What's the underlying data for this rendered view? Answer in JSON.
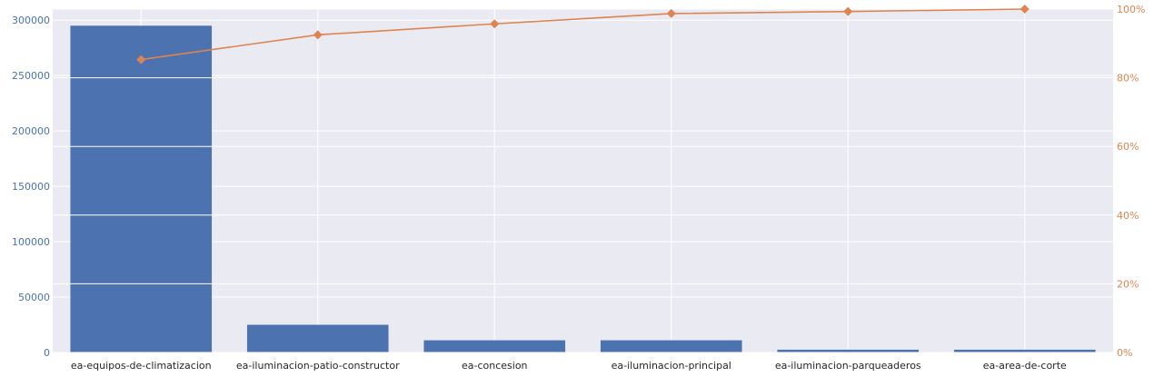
{
  "chart_data": {
    "type": "bar",
    "categories": [
      "ea-equipos-de-climatizacion",
      "ea-iluminacion-patio-constructor",
      "ea-concesion",
      "ea-iluminacion-principal",
      "ea-iluminacion-parqueaderos",
      "ea-area-de-corte"
    ],
    "values": [
      295000,
      25000,
      11000,
      11000,
      2500,
      2500
    ],
    "line_values": [
      85.3,
      92.5,
      95.7,
      98.7,
      99.3,
      100.0
    ],
    "ylim": [
      0,
      310000
    ],
    "y2lim": [
      0,
      100
    ],
    "yticks": [
      {
        "value": 0,
        "label": "0"
      },
      {
        "value": 50000,
        "label": "50000"
      },
      {
        "value": 100000,
        "label": "100000"
      },
      {
        "value": 150000,
        "label": "150000"
      },
      {
        "value": 200000,
        "label": "200000"
      },
      {
        "value": 250000,
        "label": "250000"
      },
      {
        "value": 300000,
        "label": "300000"
      }
    ],
    "y2ticks": [
      {
        "value": 0,
        "label": "0%"
      },
      {
        "value": 20,
        "label": "20%"
      },
      {
        "value": 40,
        "label": "40%"
      },
      {
        "value": 60,
        "label": "60%"
      },
      {
        "value": 80,
        "label": "80%"
      },
      {
        "value": 100,
        "label": "100%"
      }
    ],
    "grid": true,
    "colors": {
      "bar": "#4c72b0",
      "line": "#dd8452",
      "background": "#eaeaf2",
      "grid": "#ffffff",
      "xtick": "#262626"
    }
  }
}
